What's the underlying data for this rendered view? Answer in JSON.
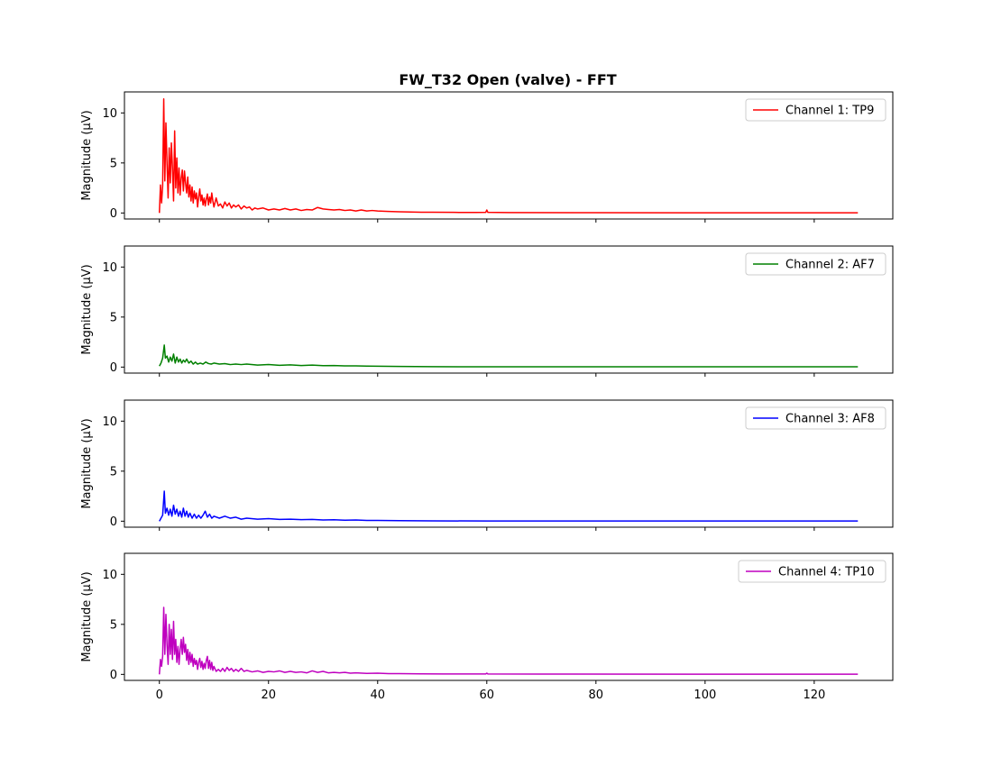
{
  "chart_data": {
    "type": "line",
    "title": "FW_T32 Open (valve) - FFT",
    "xlabel": "",
    "ylabel": "Magnitude (μV)",
    "xlim": [
      -6.4,
      134.4
    ],
    "ylim": [
      -0.6,
      12.1
    ],
    "xticks": [
      0,
      20,
      40,
      60,
      80,
      100,
      120
    ],
    "xtick_labels": [
      "0",
      "20",
      "40",
      "60",
      "80",
      "100",
      "120"
    ],
    "yticks": [
      0,
      5,
      10
    ],
    "ytick_labels": [
      "0",
      "5",
      "10"
    ],
    "legend_position": "top-right",
    "subplots": [
      {
        "series_name": "Channel 1: TP9",
        "color": "#ff0000",
        "points": [
          [
            0,
            0
          ],
          [
            0.2,
            2.8
          ],
          [
            0.4,
            1.0
          ],
          [
            0.6,
            2.7
          ],
          [
            0.8,
            11.4
          ],
          [
            1.0,
            3.2
          ],
          [
            1.2,
            9.0
          ],
          [
            1.4,
            5.0
          ],
          [
            1.6,
            1.5
          ],
          [
            1.8,
            6.5
          ],
          [
            2.0,
            3.0
          ],
          [
            2.2,
            7.0
          ],
          [
            2.4,
            4.5
          ],
          [
            2.6,
            1.2
          ],
          [
            2.8,
            8.2
          ],
          [
            3.0,
            2.5
          ],
          [
            3.2,
            5.5
          ],
          [
            3.4,
            2.0
          ],
          [
            3.6,
            4.5
          ],
          [
            3.8,
            1.8
          ],
          [
            4.0,
            3.5
          ],
          [
            4.2,
            4.3
          ],
          [
            4.4,
            2.2
          ],
          [
            4.6,
            4.2
          ],
          [
            4.8,
            3.0
          ],
          [
            5.0,
            2.0
          ],
          [
            5.2,
            3.6
          ],
          [
            5.4,
            1.6
          ],
          [
            5.6,
            2.8
          ],
          [
            5.8,
            1.2
          ],
          [
            6.0,
            2.6
          ],
          [
            6.2,
            1.0
          ],
          [
            6.4,
            2.2
          ],
          [
            6.6,
            1.4
          ],
          [
            6.8,
            2.0
          ],
          [
            7.0,
            0.6
          ],
          [
            7.2,
            1.6
          ],
          [
            7.4,
            2.4
          ],
          [
            7.6,
            1.2
          ],
          [
            7.8,
            1.8
          ],
          [
            8.0,
            0.8
          ],
          [
            8.2,
            1.5
          ],
          [
            8.4,
            0.7
          ],
          [
            8.6,
            1.4
          ],
          [
            8.8,
            1.9
          ],
          [
            9.0,
            0.8
          ],
          [
            9.2,
            1.6
          ],
          [
            9.4,
            1.0
          ],
          [
            9.6,
            2.0
          ],
          [
            9.8,
            1.2
          ],
          [
            10.0,
            0.6
          ],
          [
            10.4,
            1.5
          ],
          [
            10.8,
            0.7
          ],
          [
            11.2,
            0.9
          ],
          [
            11.6,
            0.5
          ],
          [
            12.0,
            1.1
          ],
          [
            12.4,
            0.7
          ],
          [
            12.8,
            1.0
          ],
          [
            13.2,
            0.5
          ],
          [
            13.6,
            0.8
          ],
          [
            14.0,
            0.6
          ],
          [
            14.5,
            0.8
          ],
          [
            15.0,
            0.4
          ],
          [
            15.5,
            0.7
          ],
          [
            16.0,
            0.5
          ],
          [
            16.5,
            0.6
          ],
          [
            17.0,
            0.3
          ],
          [
            17.5,
            0.5
          ],
          [
            18.0,
            0.4
          ],
          [
            19.0,
            0.5
          ],
          [
            20.0,
            0.3
          ],
          [
            21.0,
            0.4
          ],
          [
            22.0,
            0.3
          ],
          [
            23.0,
            0.45
          ],
          [
            24.0,
            0.3
          ],
          [
            25.0,
            0.4
          ],
          [
            26.0,
            0.25
          ],
          [
            27.0,
            0.35
          ],
          [
            28.0,
            0.3
          ],
          [
            29.0,
            0.55
          ],
          [
            30.0,
            0.4
          ],
          [
            31.0,
            0.35
          ],
          [
            32.0,
            0.3
          ],
          [
            33.0,
            0.35
          ],
          [
            34.0,
            0.25
          ],
          [
            35.0,
            0.3
          ],
          [
            36.0,
            0.2
          ],
          [
            37.0,
            0.3
          ],
          [
            38.0,
            0.2
          ],
          [
            39.0,
            0.25
          ],
          [
            40.0,
            0.2
          ],
          [
            42.0,
            0.15
          ],
          [
            44.0,
            0.12
          ],
          [
            46.0,
            0.1
          ],
          [
            48.0,
            0.08
          ],
          [
            50.0,
            0.07
          ],
          [
            54.0,
            0.06
          ],
          [
            58.0,
            0.05
          ],
          [
            59.8,
            0.06
          ],
          [
            60.0,
            0.3
          ],
          [
            60.2,
            0.06
          ],
          [
            64.0,
            0.04
          ],
          [
            80.0,
            0.03
          ],
          [
            100.0,
            0.02
          ],
          [
            128.0,
            0.02
          ]
        ]
      },
      {
        "series_name": "Channel 2: AF7",
        "color": "#008000",
        "points": [
          [
            0,
            0.1
          ],
          [
            0.3,
            0.4
          ],
          [
            0.6,
            0.9
          ],
          [
            0.9,
            2.2
          ],
          [
            1.1,
            0.9
          ],
          [
            1.4,
            1.1
          ],
          [
            1.7,
            0.5
          ],
          [
            2.0,
            1.0
          ],
          [
            2.3,
            0.6
          ],
          [
            2.6,
            1.3
          ],
          [
            2.9,
            0.4
          ],
          [
            3.2,
            1.0
          ],
          [
            3.5,
            0.5
          ],
          [
            3.8,
            0.8
          ],
          [
            4.1,
            0.4
          ],
          [
            4.4,
            0.7
          ],
          [
            4.7,
            0.5
          ],
          [
            5.0,
            0.8
          ],
          [
            5.4,
            0.4
          ],
          [
            5.8,
            0.6
          ],
          [
            6.2,
            0.3
          ],
          [
            6.6,
            0.5
          ],
          [
            7.0,
            0.3
          ],
          [
            7.5,
            0.4
          ],
          [
            8.0,
            0.3
          ],
          [
            8.5,
            0.5
          ],
          [
            9.0,
            0.35
          ],
          [
            9.5,
            0.3
          ],
          [
            10.0,
            0.4
          ],
          [
            11.0,
            0.3
          ],
          [
            12.0,
            0.35
          ],
          [
            13.0,
            0.25
          ],
          [
            14.0,
            0.3
          ],
          [
            15.0,
            0.25
          ],
          [
            16.0,
            0.3
          ],
          [
            18.0,
            0.2
          ],
          [
            20.0,
            0.25
          ],
          [
            22.0,
            0.18
          ],
          [
            24.0,
            0.22
          ],
          [
            26.0,
            0.15
          ],
          [
            28.0,
            0.2
          ],
          [
            30.0,
            0.14
          ],
          [
            32.0,
            0.15
          ],
          [
            34.0,
            0.12
          ],
          [
            36.0,
            0.12
          ],
          [
            38.0,
            0.1
          ],
          [
            40.0,
            0.09
          ],
          [
            44.0,
            0.06
          ],
          [
            50.0,
            0.04
          ],
          [
            60.0,
            0.03
          ],
          [
            80.0,
            0.03
          ],
          [
            128.0,
            0.03
          ]
        ]
      },
      {
        "series_name": "Channel 3: AF8",
        "color": "#0000ff",
        "points": [
          [
            0,
            0
          ],
          [
            0.3,
            0.3
          ],
          [
            0.6,
            0.6
          ],
          [
            0.9,
            3.0
          ],
          [
            1.1,
            0.8
          ],
          [
            1.4,
            1.3
          ],
          [
            1.7,
            0.6
          ],
          [
            2.0,
            1.2
          ],
          [
            2.3,
            0.5
          ],
          [
            2.6,
            1.6
          ],
          [
            2.9,
            0.7
          ],
          [
            3.2,
            1.2
          ],
          [
            3.5,
            0.5
          ],
          [
            3.8,
            1.0
          ],
          [
            4.1,
            0.4
          ],
          [
            4.4,
            1.3
          ],
          [
            4.7,
            0.5
          ],
          [
            5.0,
            1.0
          ],
          [
            5.3,
            0.4
          ],
          [
            5.6,
            0.8
          ],
          [
            6.0,
            0.3
          ],
          [
            6.4,
            0.7
          ],
          [
            6.8,
            0.3
          ],
          [
            7.2,
            0.6
          ],
          [
            7.6,
            0.3
          ],
          [
            8.0,
            0.6
          ],
          [
            8.4,
            1.0
          ],
          [
            8.8,
            0.4
          ],
          [
            9.2,
            0.7
          ],
          [
            9.6,
            0.3
          ],
          [
            10.0,
            0.5
          ],
          [
            11.0,
            0.3
          ],
          [
            12.0,
            0.5
          ],
          [
            13.0,
            0.3
          ],
          [
            14.0,
            0.4
          ],
          [
            15.0,
            0.2
          ],
          [
            16.0,
            0.3
          ],
          [
            18.0,
            0.2
          ],
          [
            20.0,
            0.25
          ],
          [
            22.0,
            0.18
          ],
          [
            24.0,
            0.2
          ],
          [
            26.0,
            0.15
          ],
          [
            28.0,
            0.18
          ],
          [
            30.0,
            0.12
          ],
          [
            32.0,
            0.14
          ],
          [
            34.0,
            0.1
          ],
          [
            36.0,
            0.12
          ],
          [
            38.0,
            0.08
          ],
          [
            40.0,
            0.07
          ],
          [
            44.0,
            0.05
          ],
          [
            50.0,
            0.03
          ],
          [
            60.0,
            0.02
          ],
          [
            80.0,
            0.02
          ],
          [
            128.0,
            0.02
          ]
        ]
      },
      {
        "series_name": "Channel 4: TP10",
        "color": "#bf00bf",
        "points": [
          [
            0,
            0
          ],
          [
            0.2,
            1.5
          ],
          [
            0.4,
            0.8
          ],
          [
            0.6,
            1.8
          ],
          [
            0.8,
            6.7
          ],
          [
            1.0,
            2.0
          ],
          [
            1.2,
            6.0
          ],
          [
            1.4,
            3.0
          ],
          [
            1.6,
            1.0
          ],
          [
            1.8,
            5.0
          ],
          [
            2.0,
            2.0
          ],
          [
            2.2,
            4.5
          ],
          [
            2.4,
            1.5
          ],
          [
            2.6,
            5.3
          ],
          [
            2.8,
            2.0
          ],
          [
            3.0,
            3.5
          ],
          [
            3.2,
            1.2
          ],
          [
            3.4,
            2.8
          ],
          [
            3.6,
            1.0
          ],
          [
            3.8,
            2.5
          ],
          [
            4.0,
            3.5
          ],
          [
            4.2,
            2.0
          ],
          [
            4.4,
            3.7
          ],
          [
            4.6,
            2.2
          ],
          [
            4.8,
            3.0
          ],
          [
            5.0,
            1.4
          ],
          [
            5.2,
            2.5
          ],
          [
            5.4,
            1.0
          ],
          [
            5.6,
            2.2
          ],
          [
            5.8,
            1.2
          ],
          [
            6.0,
            2.0
          ],
          [
            6.2,
            0.8
          ],
          [
            6.4,
            1.6
          ],
          [
            6.6,
            1.0
          ],
          [
            6.8,
            1.4
          ],
          [
            7.0,
            0.5
          ],
          [
            7.2,
            1.2
          ],
          [
            7.4,
            1.6
          ],
          [
            7.6,
            0.7
          ],
          [
            7.8,
            1.3
          ],
          [
            8.0,
            0.5
          ],
          [
            8.2,
            1.1
          ],
          [
            8.4,
            0.6
          ],
          [
            8.6,
            1.4
          ],
          [
            8.8,
            1.8
          ],
          [
            9.0,
            0.6
          ],
          [
            9.2,
            1.4
          ],
          [
            9.4,
            0.5
          ],
          [
            9.6,
            1.2
          ],
          [
            9.8,
            0.4
          ],
          [
            10.0,
            0.8
          ],
          [
            10.4,
            0.3
          ],
          [
            10.8,
            0.5
          ],
          [
            11.2,
            0.3
          ],
          [
            11.6,
            0.6
          ],
          [
            12.0,
            0.3
          ],
          [
            12.4,
            0.7
          ],
          [
            12.8,
            0.4
          ],
          [
            13.2,
            0.6
          ],
          [
            13.6,
            0.3
          ],
          [
            14.0,
            0.5
          ],
          [
            14.5,
            0.3
          ],
          [
            15.0,
            0.6
          ],
          [
            15.5,
            0.3
          ],
          [
            16.0,
            0.4
          ],
          [
            17.0,
            0.25
          ],
          [
            18.0,
            0.35
          ],
          [
            19.0,
            0.2
          ],
          [
            20.0,
            0.3
          ],
          [
            21.0,
            0.25
          ],
          [
            22.0,
            0.35
          ],
          [
            23.0,
            0.2
          ],
          [
            24.0,
            0.3
          ],
          [
            25.0,
            0.2
          ],
          [
            26.0,
            0.25
          ],
          [
            27.0,
            0.15
          ],
          [
            28.0,
            0.35
          ],
          [
            29.0,
            0.2
          ],
          [
            30.0,
            0.3
          ],
          [
            31.0,
            0.15
          ],
          [
            32.0,
            0.2
          ],
          [
            33.0,
            0.15
          ],
          [
            34.0,
            0.2
          ],
          [
            35.0,
            0.12
          ],
          [
            36.0,
            0.15
          ],
          [
            38.0,
            0.1
          ],
          [
            40.0,
            0.12
          ],
          [
            42.0,
            0.08
          ],
          [
            44.0,
            0.07
          ],
          [
            48.0,
            0.05
          ],
          [
            52.0,
            0.04
          ],
          [
            59.8,
            0.04
          ],
          [
            60.0,
            0.12
          ],
          [
            60.2,
            0.04
          ],
          [
            70.0,
            0.03
          ],
          [
            100.0,
            0.02
          ],
          [
            128.0,
            0.02
          ]
        ]
      }
    ]
  }
}
